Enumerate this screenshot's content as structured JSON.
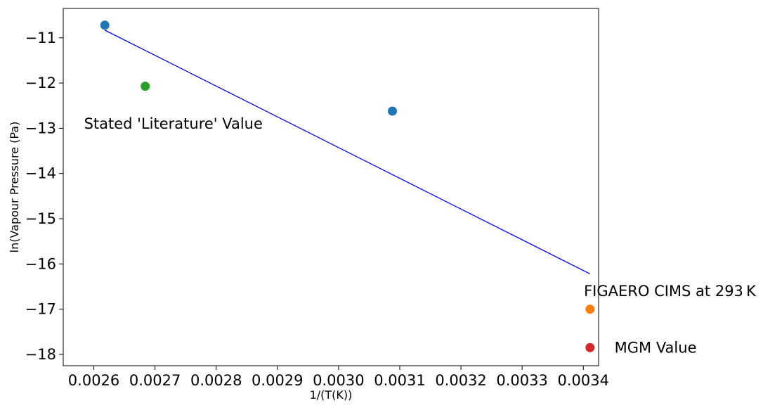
{
  "chart_data": {
    "type": "scatter",
    "xlabel": "1/(T(K))",
    "ylabel": "ln(Vapour Pressure (Pa)",
    "xlim": [
      0.00255,
      0.003425
    ],
    "ylim": [
      -18.25,
      -10.35
    ],
    "x_ticks": [
      0.0026,
      0.0027,
      0.0028,
      0.0029,
      0.003,
      0.0031,
      0.0032,
      0.0033,
      0.0034
    ],
    "x_tick_labels": [
      "0.0026",
      "0.0027",
      "0.0028",
      "0.0029",
      "0.0030",
      "0.0031",
      "0.0032",
      "0.0033",
      "0.0034"
    ],
    "y_ticks": [
      -11,
      -12,
      -13,
      -14,
      -15,
      -16,
      -17,
      -18
    ],
    "y_tick_labels": [
      "−11",
      "−12",
      "−13",
      "−14",
      "−15",
      "−16",
      "−17",
      "−18"
    ],
    "grid": false,
    "series": [
      {
        "color": "#1f77b4",
        "points": [
          [
            0.002618,
            -10.72
          ],
          [
            0.003088,
            -12.62
          ]
        ]
      },
      {
        "color": "#ff7f0e",
        "points": [
          [
            0.003411,
            -17.0
          ]
        ]
      },
      {
        "color": "#2ca02c",
        "points": [
          [
            0.002684,
            -12.07
          ]
        ]
      },
      {
        "color": "#d62728",
        "points": [
          [
            0.003411,
            -17.85
          ]
        ]
      }
    ],
    "fit_line": {
      "color": "#0000ff",
      "points": [
        [
          0.002618,
          -10.83
        ],
        [
          0.003411,
          -16.22
        ]
      ]
    },
    "annotations": [
      {
        "text": "Stated 'Literature' Value",
        "x": 0.002584,
        "y": -12.9
      },
      {
        "text": "FIGAERO CIMS at 293 K",
        "x": 0.003401,
        "y": -16.6
      },
      {
        "text": "MGM Value",
        "x": 0.003451,
        "y": -17.85
      }
    ]
  }
}
